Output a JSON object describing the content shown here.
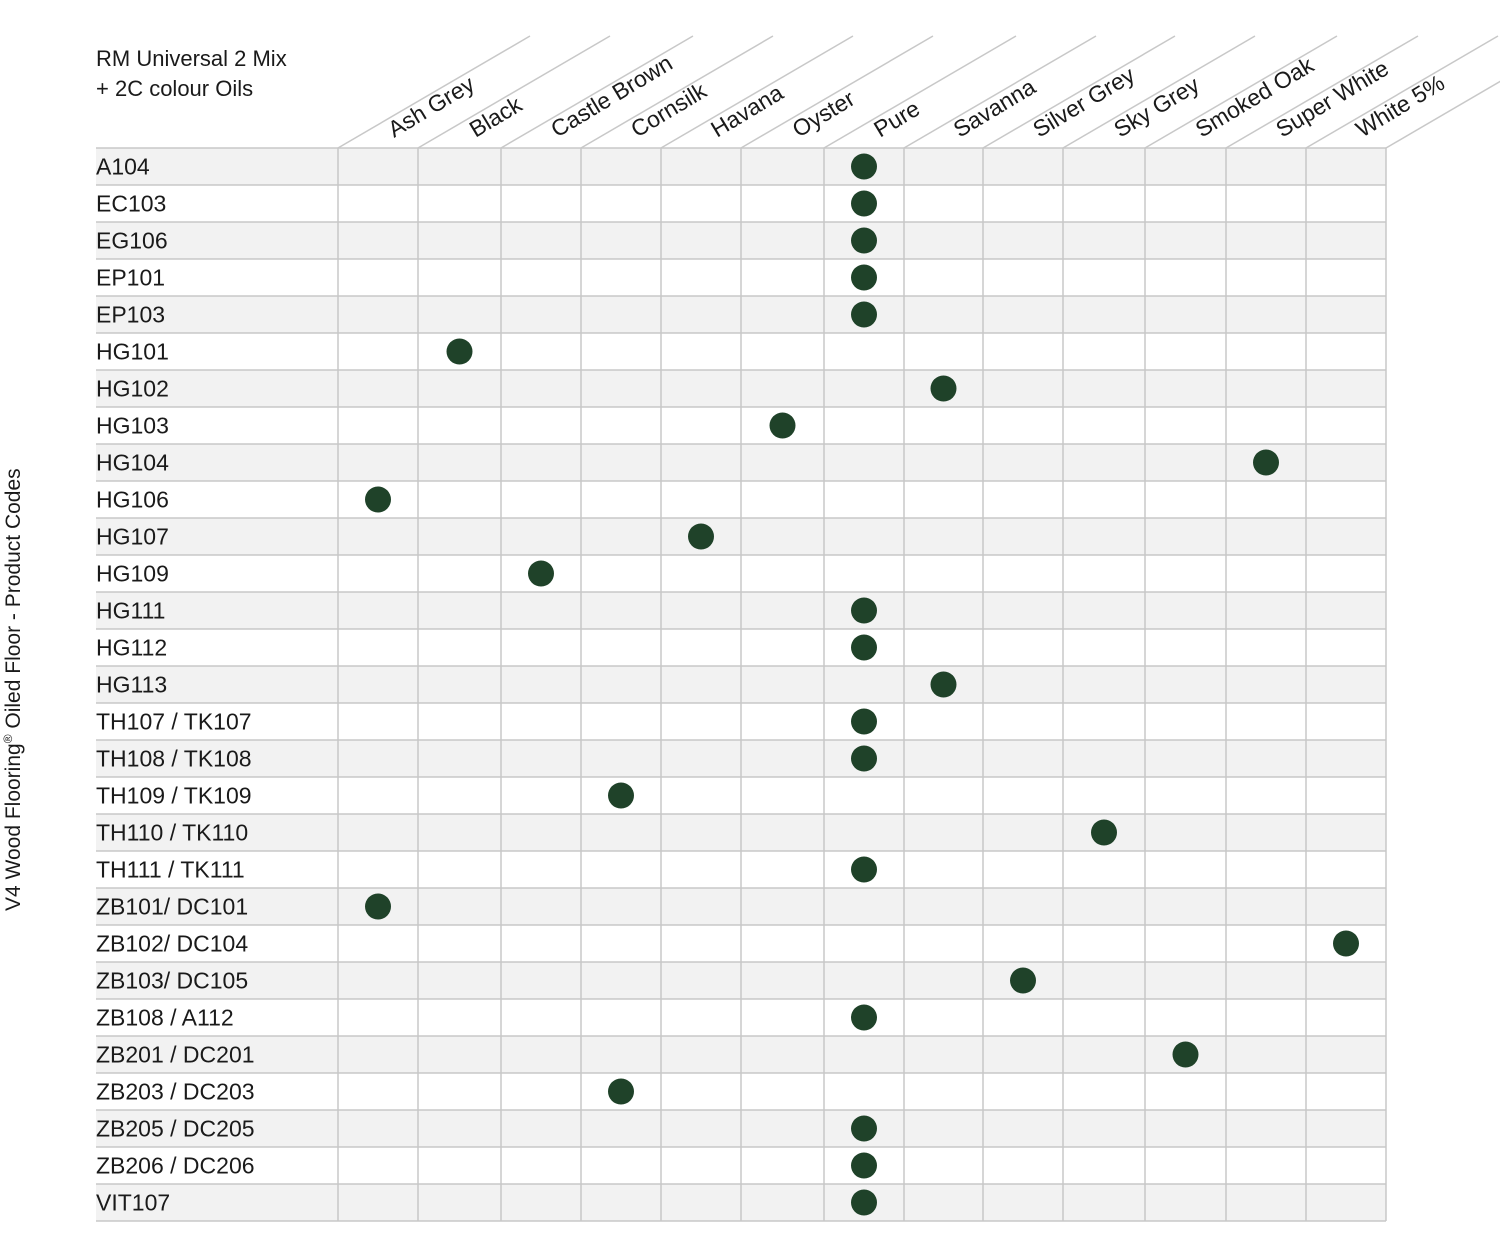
{
  "chart_data": {
    "type": "table",
    "title_lines": [
      "RM Universal 2 Mix",
      "+ 2C colour Oils"
    ],
    "ylabel_main": "V4 Wood Flooring",
    "ylabel_reg": "®",
    "ylabel_rest": " Oiled Floor - Product Codes",
    "columns": [
      "Ash Grey",
      "Black",
      "Castle Brown",
      "Cornsilk",
      "Havana",
      "Oyster",
      "Pure",
      "Savanna",
      "Silver Grey",
      "Sky Grey",
      "Smoked Oak",
      "Super White",
      "White 5%"
    ],
    "rows": [
      "A104",
      "EC103",
      "EG106",
      "EP101",
      "EP103",
      "HG101",
      "HG102",
      "HG103",
      "HG104",
      "HG106",
      "HG107",
      "HG109",
      "HG111",
      "HG112",
      "HG113",
      "TH107 / TK107",
      "TH108 / TK108",
      "TH109 / TK109",
      "TH110 / TK110",
      "TH111 / TK111",
      "ZB101/ DC101",
      "ZB102/ DC104",
      "ZB103/ DC105",
      "ZB108 / A112",
      "ZB201 / DC201",
      "ZB203 / DC203",
      "ZB205 / DC205",
      "ZB206 / DC206",
      "VIT107"
    ],
    "matches": [
      {
        "row": "A104",
        "column": "Pure"
      },
      {
        "row": "EC103",
        "column": "Pure"
      },
      {
        "row": "EG106",
        "column": "Pure"
      },
      {
        "row": "EP101",
        "column": "Pure"
      },
      {
        "row": "EP103",
        "column": "Pure"
      },
      {
        "row": "HG101",
        "column": "Black"
      },
      {
        "row": "HG102",
        "column": "Savanna"
      },
      {
        "row": "HG103",
        "column": "Oyster"
      },
      {
        "row": "HG104",
        "column": "Super White"
      },
      {
        "row": "HG106",
        "column": "Ash Grey"
      },
      {
        "row": "HG107",
        "column": "Havana"
      },
      {
        "row": "HG109",
        "column": "Castle Brown"
      },
      {
        "row": "HG111",
        "column": "Pure"
      },
      {
        "row": "HG112",
        "column": "Pure"
      },
      {
        "row": "HG113",
        "column": "Savanna"
      },
      {
        "row": "TH107 / TK107",
        "column": "Pure"
      },
      {
        "row": "TH108 / TK108",
        "column": "Pure"
      },
      {
        "row": "TH109 / TK109",
        "column": "Cornsilk"
      },
      {
        "row": "TH110 / TK110",
        "column": "Sky Grey"
      },
      {
        "row": "TH111 / TK111",
        "column": "Pure"
      },
      {
        "row": "ZB101/ DC101",
        "column": "Ash Grey"
      },
      {
        "row": "ZB102/ DC104",
        "column": "White 5%"
      },
      {
        "row": "ZB103/ DC105",
        "column": "Silver Grey"
      },
      {
        "row": "ZB108 / A112",
        "column": "Pure"
      },
      {
        "row": "ZB201 / DC201",
        "column": "Smoked Oak"
      },
      {
        "row": "ZB203 / DC203",
        "column": "Cornsilk"
      },
      {
        "row": "ZB205 / DC205",
        "column": "Pure"
      },
      {
        "row": "ZB206 / DC206",
        "column": "Pure"
      },
      {
        "row": "VIT107",
        "column": "Pure"
      }
    ],
    "colors": {
      "dot": "#1f4229",
      "stripe": "#f2f2f2",
      "grid": "#c8c8c8"
    }
  }
}
